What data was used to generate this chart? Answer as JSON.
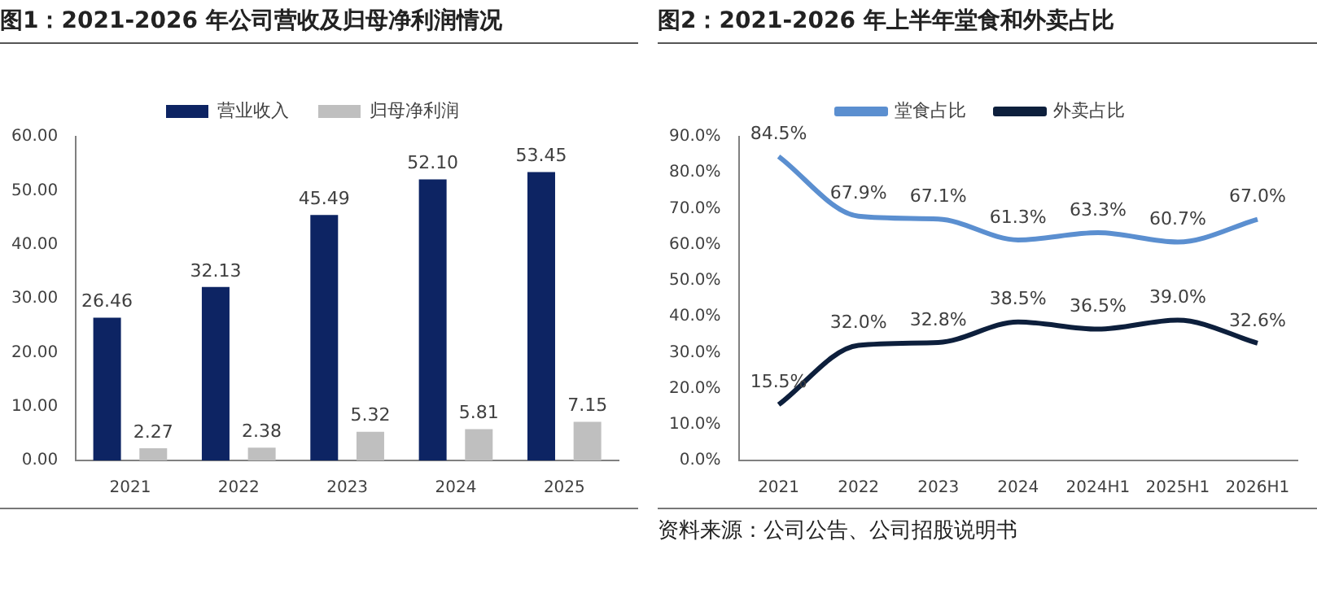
{
  "chart_data": [
    {
      "type": "bar",
      "title": "图1：2021-2026 年公司营收及归母净利润情况",
      "categories": [
        "2021",
        "2022",
        "2023",
        "2024",
        "2025"
      ],
      "series": [
        {
          "name": "营业收入",
          "color": "#0d2463",
          "values": [
            26.46,
            32.13,
            45.49,
            52.1,
            53.45
          ],
          "value_labels": [
            "26.46",
            "32.13",
            "45.49",
            "52.10",
            "53.45"
          ]
        },
        {
          "name": "归母净利润",
          "color": "#bfbfbf",
          "values": [
            2.27,
            2.38,
            5.32,
            5.81,
            7.15
          ],
          "value_labels": [
            "2.27",
            "2.38",
            "5.32",
            "5.81",
            "7.15"
          ]
        }
      ],
      "ylim": [
        0,
        60
      ],
      "yticks": [
        {
          "value": 0,
          "label": "0.00"
        },
        {
          "value": 10,
          "label": "10.00"
        },
        {
          "value": 20,
          "label": "20.00"
        },
        {
          "value": 30,
          "label": "30.00"
        },
        {
          "value": 40,
          "label": "40.00"
        },
        {
          "value": 50,
          "label": "50.00"
        },
        {
          "value": 60,
          "label": "60.00"
        }
      ],
      "grid": false,
      "legend": "top"
    },
    {
      "type": "line",
      "title": "图2：2021-2026 年上半年堂食和外卖占比",
      "categories": [
        "2021",
        "2022",
        "2023",
        "2024",
        "2024H1",
        "2025H1",
        "2026H1"
      ],
      "series": [
        {
          "name": "堂食占比",
          "color": "#5b8fd0",
          "values": [
            84.5,
            67.9,
            67.1,
            61.3,
            63.3,
            60.7,
            67.0
          ],
          "value_labels": [
            "84.5%",
            "67.9%",
            "67.1%",
            "61.3%",
            "63.3%",
            "60.7%",
            "67.0%"
          ]
        },
        {
          "name": "外卖占比",
          "color": "#0d1f3c",
          "values": [
            15.5,
            32.0,
            32.8,
            38.5,
            36.5,
            39.0,
            32.6
          ],
          "value_labels": [
            "15.5%",
            "32.0%",
            "32.8%",
            "38.5%",
            "36.5%",
            "39.0%",
            "32.6%"
          ]
        }
      ],
      "ylim": [
        0,
        90
      ],
      "yticks": [
        {
          "value": 0,
          "label": "0.0%"
        },
        {
          "value": 10,
          "label": "10.0%"
        },
        {
          "value": 20,
          "label": "20.0%"
        },
        {
          "value": 30,
          "label": "30.0%"
        },
        {
          "value": 40,
          "label": "40.0%"
        },
        {
          "value": 50,
          "label": "50.0%"
        },
        {
          "value": 60,
          "label": "60.0%"
        },
        {
          "value": 70,
          "label": "70.0%"
        },
        {
          "value": 80,
          "label": "80.0%"
        },
        {
          "value": 90,
          "label": "90.0%"
        }
      ],
      "grid": false,
      "legend": "top",
      "marker": "none",
      "line_style": "solid",
      "annotations": [
        "资料来源：公司公告、公司招股说明书"
      ]
    }
  ]
}
